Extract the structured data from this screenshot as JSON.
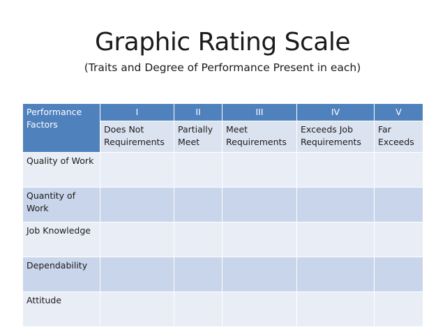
{
  "title": "Graphic Rating Scale",
  "subtitle": "(Traits and Degree of Performance Present in each)",
  "table": {
    "corner_label": "Performance Factors",
    "levels": [
      {
        "roman": "I",
        "desc": "Does Not Requirements"
      },
      {
        "roman": "II",
        "desc": "Partially Meet"
      },
      {
        "roman": "III",
        "desc": "Meet Requirements"
      },
      {
        "roman": "IV",
        "desc": "Exceeds Job Requirements"
      },
      {
        "roman": "V",
        "desc": "Far Exceeds"
      }
    ],
    "factors": [
      "Quality of Work",
      "Quantity of Work",
      "Job Knowledge",
      "Dependability",
      "Attitude"
    ]
  }
}
